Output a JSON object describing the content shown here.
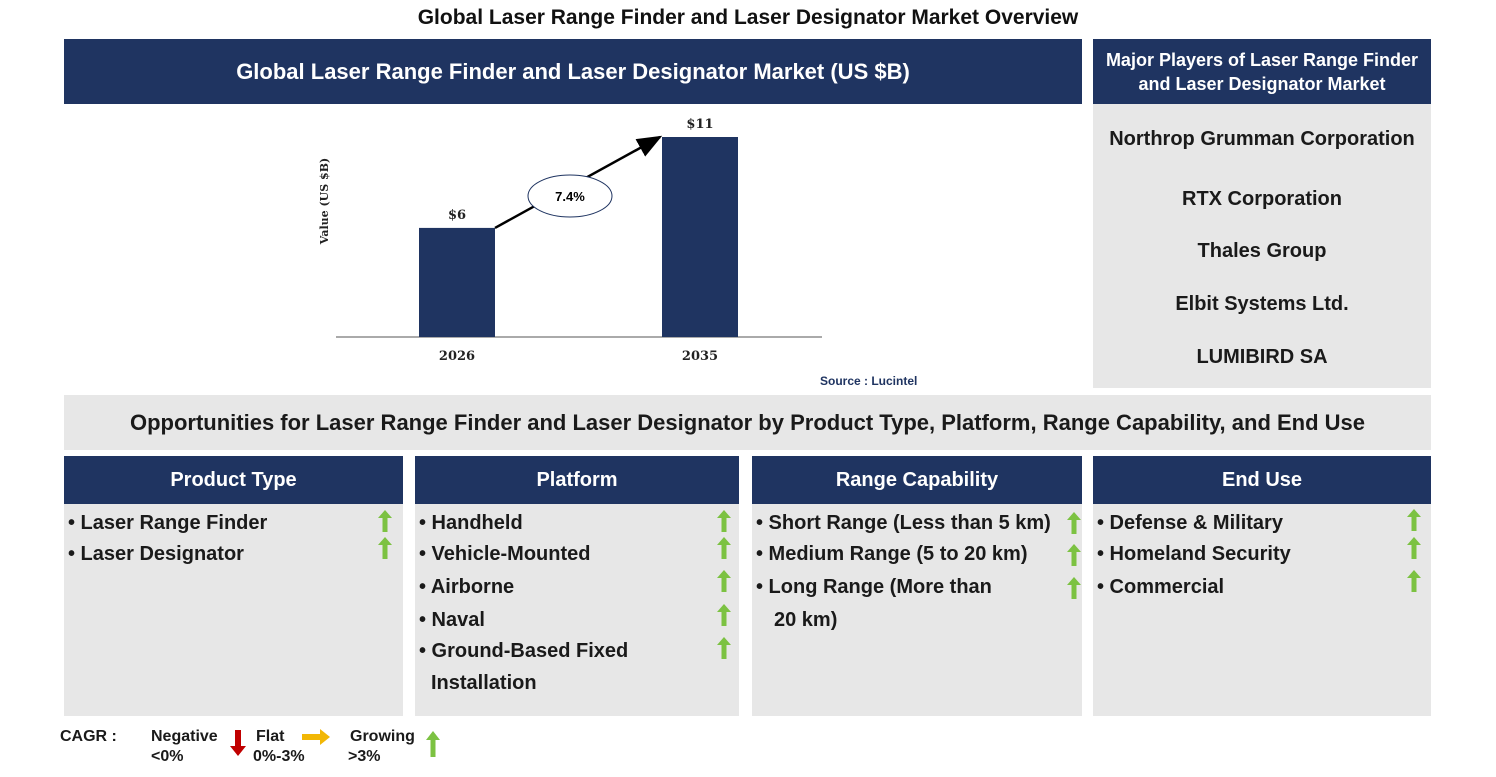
{
  "page_title": "Global Laser Range Finder and Laser Designator Market Overview",
  "chart_header": "Global Laser Range Finder and Laser Designator Market (US $B)",
  "chart_data": {
    "type": "bar",
    "categories": [
      "2026",
      "2035"
    ],
    "values": [
      6,
      11
    ],
    "data_labels": [
      "$6",
      "$11"
    ],
    "ylabel": "Value (US $B)",
    "xlabel": "",
    "ylim": [
      0,
      11
    ],
    "grid": false,
    "bar_color": "#1f3461",
    "annotation": {
      "cagr_label": "7.4%",
      "type": "arrow between bars"
    }
  },
  "source": "Source : Lucintel",
  "players": {
    "header": "Major Players of Laser Range Finder and Laser Designator Market",
    "items": [
      "Northrop Grumman Corporation",
      "RTX Corporation",
      "Thales Group",
      "Elbit Systems Ltd.",
      "LUMIBIRD SA"
    ]
  },
  "opportunities_title": "Opportunities for Laser Range Finder and Laser Designator by Product Type, Platform, Range Capability, and End Use",
  "segments": [
    {
      "title": "Product Type",
      "items": [
        "• Laser Range Finder",
        "• Laser Designator"
      ]
    },
    {
      "title": "Platform",
      "items": [
        "• Handheld",
        "• Vehicle-Mounted",
        "• Airborne",
        "• Naval",
        "• Ground-Based Fixed",
        "Installation"
      ]
    },
    {
      "title": "Range Capability",
      "items": [
        "• Short Range (Less than 5 km)",
        "• Medium Range (5 to 20 km)",
        "• Long Range (More than",
        "20 km)"
      ]
    },
    {
      "title": "End Use",
      "items": [
        "• Defense & Military",
        "• Homeland Security",
        "• Commercial"
      ]
    }
  ],
  "legend": {
    "label": "CAGR :",
    "negative": "Negative",
    "negative_range": "<0%",
    "flat": "Flat",
    "flat_range": "0%-3%",
    "growing": "Growing",
    "growing_range": ">3%"
  },
  "colors": {
    "navy": "#1f3461",
    "panel_gray": "#e7e7e7",
    "growing": "#7cc242",
    "negative": "#c00000",
    "flat": "#f2b705"
  },
  "icons": {
    "growing": "up-arrow-icon",
    "negative": "down-arrow-icon",
    "flat": "right-arrow-icon"
  }
}
